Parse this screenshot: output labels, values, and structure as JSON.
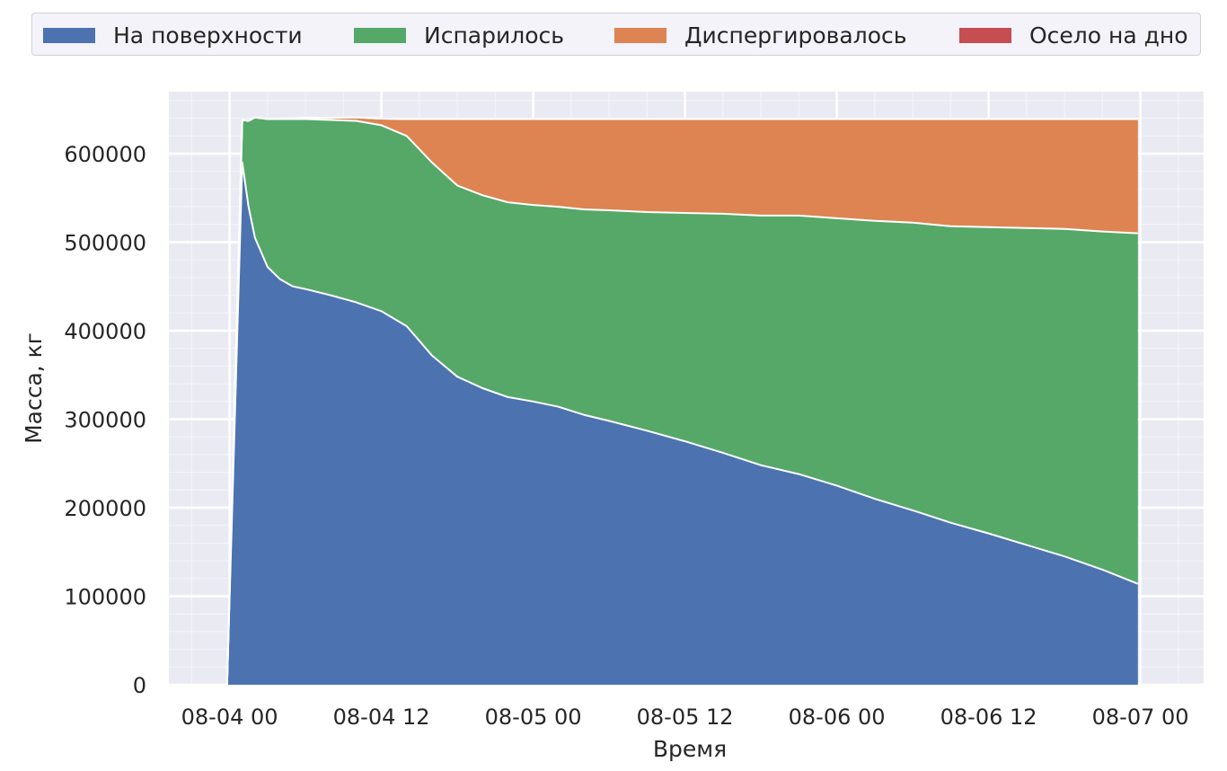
{
  "chart_data": {
    "type": "area",
    "stacked": true,
    "title": "",
    "xlabel": "Время",
    "ylabel": "Масса, кг",
    "x_ticks": [
      "08-04 00",
      "08-04 12",
      "08-05 00",
      "08-05 12",
      "08-06 00",
      "08-06 12",
      "08-07 00"
    ],
    "y_ticks": [
      "0",
      "100000",
      "200000",
      "300000",
      "400000",
      "500000",
      "600000"
    ],
    "xlim_hours": [
      -4.8,
      77
    ],
    "ylim": [
      0,
      670000
    ],
    "grid": true,
    "legend_position": "top",
    "x_hours": [
      -0.2,
      1,
      1.5,
      2,
      3,
      4,
      5,
      6,
      8,
      10,
      12,
      14,
      16,
      17,
      18,
      20,
      22,
      24,
      26,
      28,
      30,
      33,
      36,
      39,
      42,
      45,
      48,
      51,
      54,
      57,
      60,
      63,
      66,
      69,
      71.8
    ],
    "series": [
      {
        "name": "На поверхности",
        "color": "#4c72b0",
        "values": [
          0,
          590000,
          540000,
          505000,
          472000,
          458000,
          450000,
          447000,
          440000,
          432000,
          422000,
          405000,
          372000,
          360000,
          348000,
          335000,
          325000,
          320000,
          314000,
          305000,
          298000,
          287000,
          275000,
          262000,
          248000,
          238000,
          225000,
          210000,
          197000,
          183000,
          171000,
          158000,
          145000,
          130000,
          114000
        ]
      },
      {
        "name": "Испарилось",
        "color": "#55a868",
        "values": [
          0,
          48000,
          97000,
          136000,
          167000,
          181000,
          189000,
          192000,
          198000,
          205000,
          210000,
          215000,
          218000,
          217000,
          216000,
          218000,
          220000,
          222000,
          226000,
          232000,
          238000,
          247000,
          258000,
          270000,
          282000,
          292000,
          302000,
          314000,
          325000,
          335000,
          346000,
          358000,
          370000,
          382000,
          396000
        ]
      },
      {
        "name": "Диспергировалось",
        "color": "#dd8452",
        "values": [
          0,
          0,
          0,
          0,
          0,
          500,
          1000,
          1500,
          2500,
          4000,
          7500,
          19000,
          49000,
          62000,
          75000,
          86000,
          94000,
          97000,
          99000,
          102000,
          103000,
          105000,
          106000,
          107000,
          109000,
          109000,
          112000,
          115000,
          117000,
          121000,
          122000,
          123000,
          124000,
          127000,
          129000
        ]
      },
      {
        "name": "Осело на дно",
        "color": "#c44e52",
        "values": [
          0,
          0,
          0,
          0,
          0,
          0,
          0,
          0,
          0,
          0,
          0,
          0,
          0,
          0,
          0,
          0,
          0,
          0,
          0,
          0,
          0,
          0,
          0,
          0,
          0,
          0,
          0,
          0,
          0,
          0,
          0,
          0,
          0,
          0,
          0
        ]
      }
    ]
  }
}
